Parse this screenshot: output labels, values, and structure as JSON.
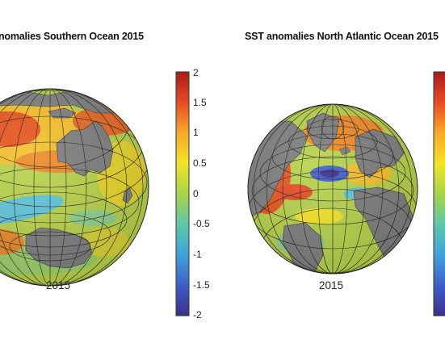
{
  "maps": [
    {
      "title": "nomalies Southern Ocean 2015",
      "year_label": "2015",
      "region": "Southern Ocean"
    },
    {
      "title": "SST anomalies North Atlantic Ocean 2015",
      "year_label": "2015",
      "region": "North Atlantic Ocean"
    }
  ],
  "colorbar": {
    "min": -2,
    "max": 2,
    "ticks": [
      "2",
      "1.5",
      "1",
      "0.5",
      "0",
      "-0.5",
      "-1",
      "-1.5",
      "-2"
    ],
    "colors": [
      "#3a2f8c",
      "#3f5fc8",
      "#3fa2dc",
      "#5dc8a8",
      "#a8d44a",
      "#f2e326",
      "#f8a92a",
      "#e84b24",
      "#a81c1c"
    ]
  },
  "colors": {
    "land": "#7e7e7e",
    "grid": "#1a1a1a"
  }
}
